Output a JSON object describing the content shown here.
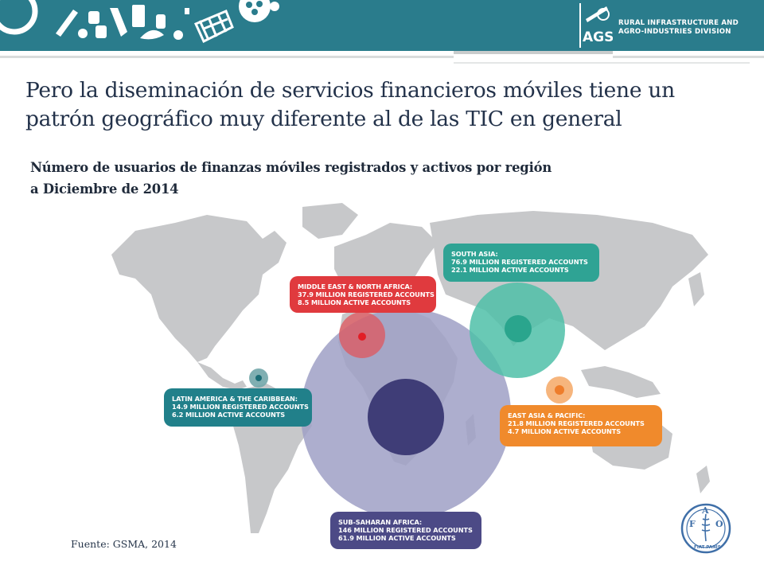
{
  "header": {
    "division_line1": "RURAL INFRASTRUCTURE AND",
    "division_line2": "AGRO-INDUSTRIES DIVISION",
    "logo_text": "AGS",
    "icon_names": [
      "gear-icon",
      "bottle-icon",
      "bread-icon",
      "can-icon",
      "fish-icon",
      "basket-icon",
      "reel-icon"
    ],
    "color": "#2a7c8c"
  },
  "title_line1": "Pero la diseminación de servicios financieros móviles tiene un",
  "title_line2": "patrón geográfico muy diferente al de las TIC en general",
  "subtitle_line1": "Número de usuarios de finanzas móviles registrados y activos por región",
  "subtitle_line2": "a Diciembre de 2014",
  "regions": {
    "south_asia": {
      "name": "SOUTH ASIA:",
      "registered": "76.9 MILLION REGISTERED ACCOUNTS",
      "active": "22.1 MILLION ACTIVE ACCOUNTS",
      "color": "#2fa394"
    },
    "mena": {
      "name": "MIDDLE EAST & NORTH AFRICA:",
      "registered": "37.9 MILLION REGISTERED ACCOUNTS",
      "active": "8.5 MILLION ACTIVE ACCOUNTS",
      "color": "#e03a3e"
    },
    "latam": {
      "name": "LATIN AMERICA & THE CARIBBEAN:",
      "registered": "14.9 MILLION REGISTERED ACCOUNTS",
      "active": "6.2 MILLION ACTIVE ACCOUNTS",
      "color": "#21808a"
    },
    "east_asia": {
      "name": "EAST ASIA & PACIFIC:",
      "registered": "21.8 MILLION REGISTERED ACCOUNTS",
      "active": "4.7 MILLION ACTIVE ACCOUNTS",
      "color": "#f08a2c"
    },
    "ssa": {
      "name": "SUB-SAHARAN AFRICA:",
      "registered": "146 MILLION REGISTERED ACCOUNTS",
      "active": "61.9 MILLION ACTIVE ACCOUNTS",
      "color": "#4c4a86"
    }
  },
  "source": "Fuente: GSMA, 2014",
  "fao_logo": {
    "letters": [
      "F",
      "A",
      "O"
    ],
    "motto": "FIAT PANIS"
  }
}
